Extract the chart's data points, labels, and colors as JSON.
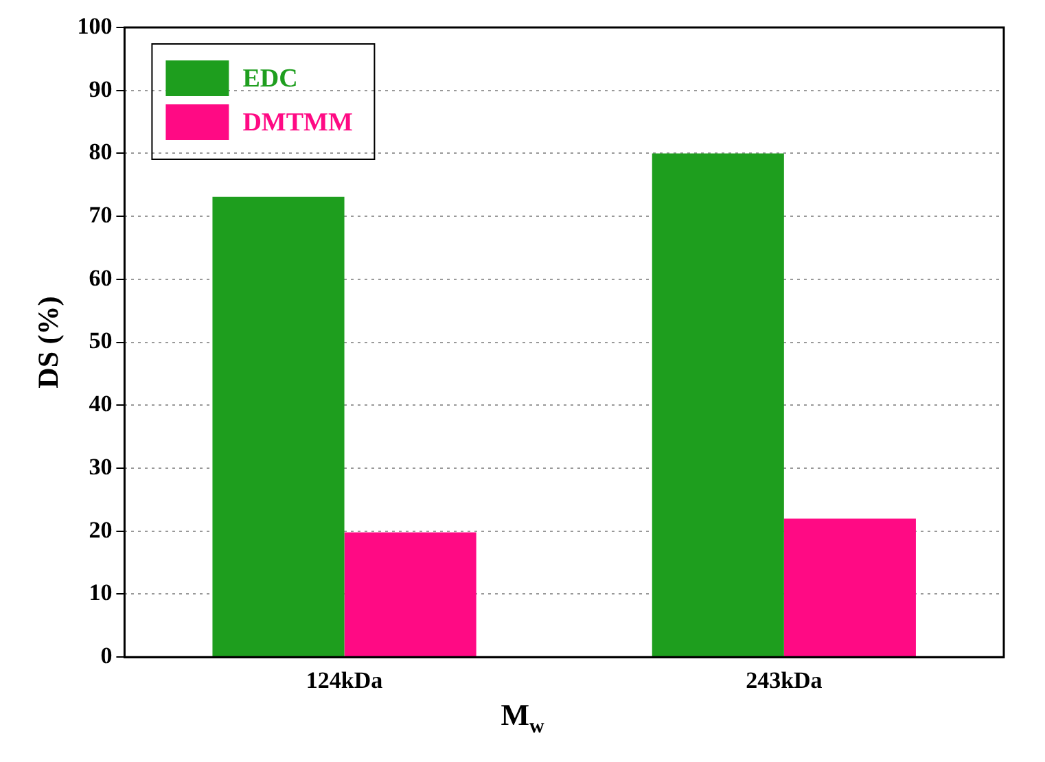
{
  "chart_data": {
    "type": "bar",
    "xlabel": "M$_{w}$",
    "ylabel": "DS (%)",
    "categories": [
      "124kDa",
      "243kDa"
    ],
    "series": [
      {
        "name": "EDC",
        "color": "#1e9e1e",
        "values": [
          73.1,
          80
        ]
      },
      {
        "name": "DMTMM",
        "color": "#ff0a84",
        "values": [
          19.8,
          22
        ]
      }
    ],
    "ylim": [
      0,
      100
    ],
    "yticks": [
      0,
      10,
      20,
      30,
      40,
      50,
      60,
      70,
      80,
      90,
      100
    ],
    "grid": "y",
    "legend": "top left"
  }
}
